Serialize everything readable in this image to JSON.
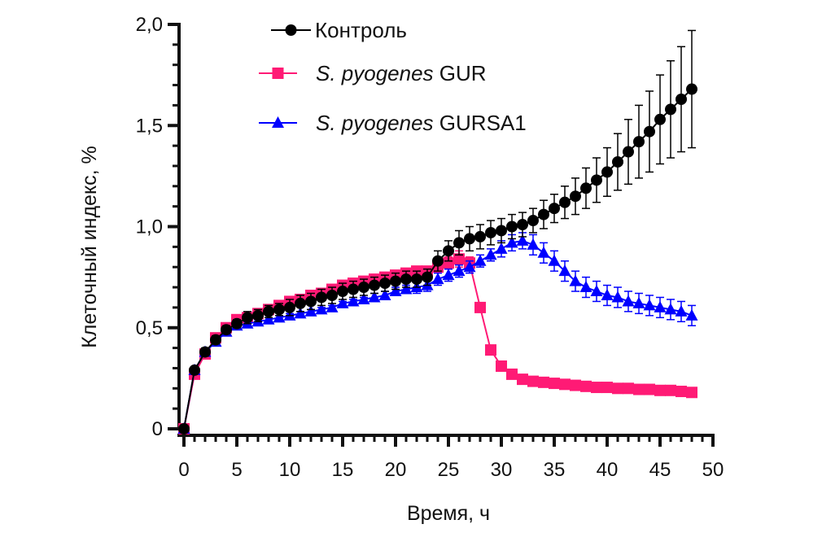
{
  "chart_data": {
    "type": "line",
    "xlabel": "Время, ч",
    "ylabel": "Клеточный индекс, %",
    "xlim": [
      0,
      50
    ],
    "ylim": [
      0,
      2.0
    ],
    "x_ticks": [
      0,
      5,
      10,
      15,
      20,
      25,
      30,
      35,
      40,
      45,
      50
    ],
    "x_tick_labels": [
      "0",
      "5",
      "10",
      "15",
      "20",
      "25",
      "30",
      "35",
      "40",
      "45",
      "50"
    ],
    "y_ticks": [
      0,
      0.5,
      1.0,
      1.5,
      2.0
    ],
    "y_tick_labels": [
      "0",
      "0,5",
      "1,0",
      "1,5",
      "2,0"
    ],
    "grid": false,
    "legend_position": "top-center",
    "series": [
      {
        "name": "Контроль",
        "color": "#000000",
        "marker": "circle",
        "x": [
          0,
          1,
          2,
          3,
          4,
          5,
          6,
          7,
          8,
          9,
          10,
          11,
          12,
          13,
          14,
          15,
          16,
          17,
          18,
          19,
          20,
          21,
          22,
          23,
          24,
          25,
          26,
          27,
          28,
          29,
          30,
          31,
          32,
          33,
          34,
          35,
          36,
          37,
          38,
          39,
          40,
          41,
          42,
          43,
          44,
          45,
          46,
          47,
          48
        ],
        "values": [
          0,
          0.29,
          0.38,
          0.44,
          0.49,
          0.52,
          0.55,
          0.56,
          0.58,
          0.59,
          0.6,
          0.62,
          0.63,
          0.65,
          0.66,
          0.68,
          0.69,
          0.7,
          0.71,
          0.72,
          0.73,
          0.74,
          0.74,
          0.75,
          0.83,
          0.88,
          0.92,
          0.94,
          0.95,
          0.97,
          0.98,
          1.0,
          1.01,
          1.03,
          1.06,
          1.09,
          1.12,
          1.15,
          1.19,
          1.23,
          1.27,
          1.32,
          1.37,
          1.42,
          1.47,
          1.53,
          1.58,
          1.63,
          1.68
        ],
        "errors": [
          0,
          0.01,
          0.02,
          0.02,
          0.02,
          0.02,
          0.03,
          0.03,
          0.03,
          0.03,
          0.04,
          0.04,
          0.04,
          0.04,
          0.04,
          0.04,
          0.04,
          0.04,
          0.04,
          0.04,
          0.04,
          0.04,
          0.04,
          0.04,
          0.05,
          0.05,
          0.06,
          0.06,
          0.06,
          0.06,
          0.06,
          0.06,
          0.06,
          0.06,
          0.07,
          0.07,
          0.08,
          0.09,
          0.1,
          0.11,
          0.12,
          0.14,
          0.16,
          0.18,
          0.2,
          0.22,
          0.24,
          0.26,
          0.29
        ]
      },
      {
        "name": "S. pyogenes GUR",
        "name_italic": "S. pyogenes",
        "name_rest": "GUR",
        "color": "#ff1a75",
        "marker": "square",
        "x": [
          0,
          1,
          2,
          3,
          4,
          5,
          6,
          7,
          8,
          9,
          10,
          11,
          12,
          13,
          14,
          15,
          16,
          17,
          18,
          19,
          20,
          21,
          22,
          23,
          24,
          25,
          26,
          27,
          28,
          29,
          30,
          31,
          32,
          33,
          34,
          35,
          36,
          37,
          38,
          39,
          40,
          41,
          42,
          43,
          44,
          45,
          46,
          47,
          48
        ],
        "values": [
          0,
          0.27,
          0.37,
          0.45,
          0.5,
          0.54,
          0.55,
          0.57,
          0.59,
          0.61,
          0.63,
          0.64,
          0.66,
          0.67,
          0.69,
          0.71,
          0.72,
          0.73,
          0.74,
          0.75,
          0.76,
          0.77,
          0.78,
          0.78,
          0.8,
          0.82,
          0.84,
          0.82,
          0.6,
          0.39,
          0.31,
          0.27,
          0.245,
          0.235,
          0.23,
          0.225,
          0.22,
          0.215,
          0.21,
          0.205,
          0.205,
          0.2,
          0.2,
          0.195,
          0.195,
          0.19,
          0.19,
          0.185,
          0.18
        ],
        "errors": [
          0,
          0.01,
          0.01,
          0.01,
          0.01,
          0.01,
          0.01,
          0.01,
          0.01,
          0.01,
          0.01,
          0.01,
          0.01,
          0.01,
          0.01,
          0.01,
          0.01,
          0.01,
          0.01,
          0.01,
          0.01,
          0.01,
          0.01,
          0.01,
          0.02,
          0.03,
          0.04,
          0.03,
          0.02,
          0.01,
          0.01,
          0.01,
          0.01,
          0.01,
          0.01,
          0.01,
          0.01,
          0.01,
          0.01,
          0.01,
          0.01,
          0.01,
          0.01,
          0.01,
          0.01,
          0.01,
          0.01,
          0.01,
          0.01
        ]
      },
      {
        "name": "S. pyogenes GURSA1",
        "name_italic": "S. pyogenes",
        "name_rest": "GURSA1",
        "color": "#0000ff",
        "marker": "triangle",
        "x": [
          0,
          1,
          2,
          3,
          4,
          5,
          6,
          7,
          8,
          9,
          10,
          11,
          12,
          13,
          14,
          15,
          16,
          17,
          18,
          19,
          20,
          21,
          22,
          23,
          24,
          25,
          26,
          27,
          28,
          29,
          30,
          31,
          32,
          33,
          34,
          35,
          36,
          37,
          38,
          39,
          40,
          41,
          42,
          43,
          44,
          45,
          46,
          47,
          48
        ],
        "values": [
          0,
          0.29,
          0.38,
          0.43,
          0.48,
          0.51,
          0.52,
          0.53,
          0.54,
          0.55,
          0.56,
          0.57,
          0.58,
          0.59,
          0.6,
          0.62,
          0.63,
          0.64,
          0.65,
          0.66,
          0.68,
          0.69,
          0.7,
          0.71,
          0.74,
          0.76,
          0.78,
          0.8,
          0.83,
          0.86,
          0.89,
          0.92,
          0.93,
          0.91,
          0.87,
          0.83,
          0.78,
          0.73,
          0.7,
          0.68,
          0.66,
          0.65,
          0.63,
          0.62,
          0.61,
          0.6,
          0.59,
          0.58,
          0.56
        ],
        "errors": [
          0,
          0.01,
          0.01,
          0.01,
          0.01,
          0.01,
          0.01,
          0.01,
          0.01,
          0.01,
          0.01,
          0.01,
          0.01,
          0.01,
          0.01,
          0.01,
          0.01,
          0.01,
          0.02,
          0.02,
          0.02,
          0.02,
          0.03,
          0.03,
          0.03,
          0.03,
          0.03,
          0.03,
          0.03,
          0.03,
          0.04,
          0.04,
          0.04,
          0.05,
          0.05,
          0.05,
          0.05,
          0.05,
          0.05,
          0.05,
          0.05,
          0.05,
          0.05,
          0.05,
          0.05,
          0.05,
          0.05,
          0.05,
          0.05
        ]
      }
    ]
  }
}
